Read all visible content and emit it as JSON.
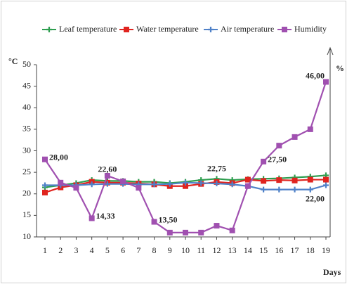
{
  "chart_data": {
    "type": "line",
    "x_label": "Days",
    "y_label": "°C",
    "y2_label": "%",
    "x": [
      1,
      2,
      3,
      4,
      5,
      6,
      7,
      8,
      9,
      10,
      11,
      12,
      13,
      14,
      15,
      16,
      17,
      18,
      19
    ],
    "xlim": [
      0.5,
      19.6
    ],
    "xticks": [
      1,
      2,
      3,
      4,
      5,
      6,
      7,
      8,
      9,
      10,
      11,
      12,
      13,
      14,
      15,
      16,
      17,
      18,
      19
    ],
    "ylim": [
      10,
      50
    ],
    "yticks": [
      10,
      15,
      20,
      25,
      30,
      35,
      40,
      45,
      50
    ],
    "grid": false,
    "legend": "top",
    "series": [
      {
        "name": "Leaf temperature",
        "color": "#2e9e4f",
        "marker": "plus",
        "values": [
          21.5,
          22,
          22.5,
          23.2,
          23,
          23,
          22.8,
          22.8,
          22.5,
          22.8,
          23.2,
          23.5,
          23.2,
          23.4,
          23.5,
          23.6,
          23.8,
          24,
          24.3
        ]
      },
      {
        "name": "Water temperature",
        "color": "#e0241f",
        "marker": "square",
        "values": [
          20.3,
          21.5,
          22,
          22.8,
          22.6,
          22.6,
          22.4,
          22.2,
          21.8,
          21.8,
          22.3,
          22.75,
          22.5,
          23.3,
          23,
          23.2,
          23.1,
          23.3,
          23.3
        ],
        "value_labels": [
          null,
          null,
          null,
          null,
          "22,60",
          null,
          null,
          null,
          null,
          null,
          null,
          "22,75",
          null,
          null,
          null,
          null,
          null,
          null,
          null
        ]
      },
      {
        "name": "Air temperature",
        "color": "#4f81c8",
        "marker": "plus",
        "values": [
          22,
          22,
          22,
          22.2,
          22.3,
          22.3,
          22.2,
          22.2,
          22.3,
          22.6,
          22.5,
          22.4,
          22.2,
          21.8,
          21,
          21,
          21,
          21,
          22
        ],
        "value_labels": [
          null,
          null,
          null,
          null,
          null,
          null,
          null,
          null,
          null,
          null,
          null,
          null,
          null,
          null,
          null,
          null,
          null,
          null,
          "22,00"
        ]
      },
      {
        "name": "Humidity",
        "color": "#a050b0",
        "marker": "square",
        "values": [
          28,
          22.6,
          21.4,
          14.33,
          24.2,
          22.9,
          21.4,
          13.5,
          11,
          11,
          11,
          12.6,
          11.5,
          21.8,
          27.5,
          31.2,
          33.2,
          35,
          46
        ],
        "value_labels": [
          "28,00",
          null,
          null,
          "14,33",
          null,
          null,
          null,
          "13,50",
          null,
          null,
          null,
          null,
          null,
          null,
          "27,50",
          null,
          null,
          null,
          "46,00"
        ]
      }
    ]
  }
}
